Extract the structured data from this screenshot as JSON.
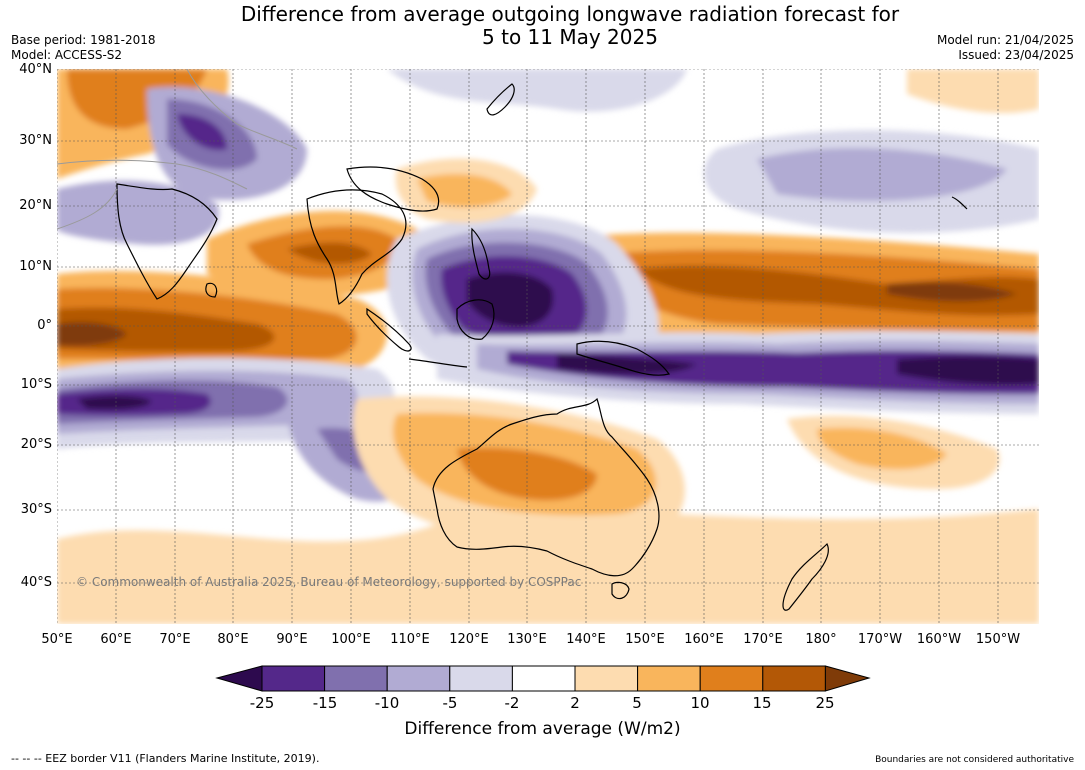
{
  "title_line1": "Difference from average outgoing longwave radiation forecast for",
  "title_line2": "5 to 11 May 2025",
  "base_period": "Base period: 1981-2018",
  "model": "Model: ACCESS-S2",
  "model_run": "Model run: 21/04/2025",
  "issued": "Issued: 23/04/2025",
  "lat_labels": [
    "40°N",
    "30°N",
    "20°N",
    "10°N",
    "0°",
    "10°S",
    "20°S",
    "30°S",
    "40°S"
  ],
  "lon_labels": [
    "50°E",
    "60°E",
    "70°E",
    "80°E",
    "90°E",
    "100°E",
    "110°E",
    "120°E",
    "130°E",
    "140°E",
    "150°E",
    "160°E",
    "170°E",
    "180°",
    "170°W",
    "160°W",
    "150°W"
  ],
  "copyright": "© Commonwealth of Australia 2025, Bureau of Meteorology, supported by COSPPac",
  "colorbar": {
    "ticks": [
      "-25",
      "-15",
      "-10",
      "-5",
      "-2",
      "2",
      "5",
      "10",
      "15",
      "25"
    ],
    "title": "Difference from average (W/m2)",
    "colors": [
      "#2d0a4e",
      "#54288a",
      "#8070ae",
      "#b1abd3",
      "#d9d9ea",
      "#ffffff",
      "#fddcb0",
      "#f9b55c",
      "#e07f1c",
      "#b35806",
      "#7f3b08"
    ]
  },
  "footer_left": "--  --  -- EEZ border V11 (Flanders Marine Institute, 2019).",
  "footer_right": "Boundaries are not considered authoritative",
  "legend_icons": {
    "low_arrow": "left-triangle-icon",
    "high_arrow": "right-triangle-icon"
  }
}
